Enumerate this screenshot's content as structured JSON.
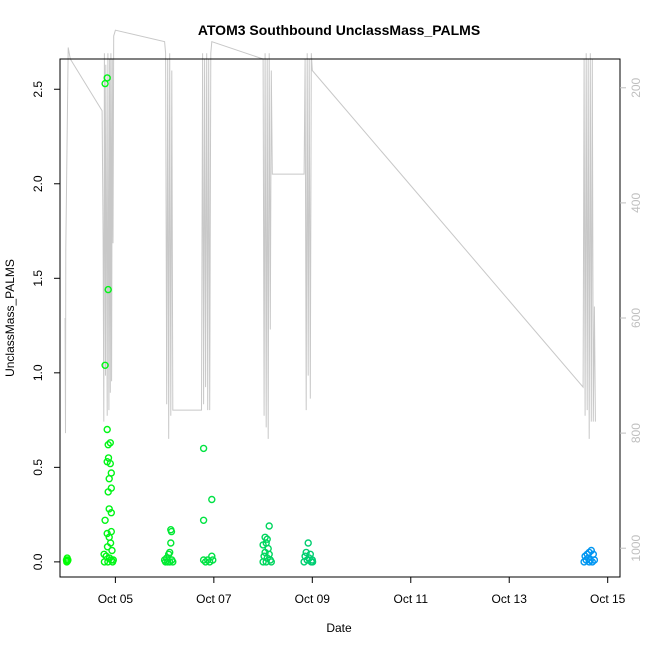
{
  "chart_data": {
    "type": "scatter",
    "title": "ATOM3 Southbound UnclassMass_PALMS",
    "xlabel": "Date",
    "ylabel": "UnclassMass_PALMS",
    "xlim": [
      "2017-10-03T21:00",
      "2017-10-15T06:00"
    ],
    "ylim": [
      -0.08,
      2.66
    ],
    "x_ticks": [
      {
        "value": "2017-10-05",
        "label": "Oct 05"
      },
      {
        "value": "2017-10-07",
        "label": "Oct 07"
      },
      {
        "value": "2017-10-09",
        "label": "Oct 09"
      },
      {
        "value": "2017-10-11",
        "label": "Oct 11"
      },
      {
        "value": "2017-10-13",
        "label": "Oct 13"
      },
      {
        "value": "2017-10-15",
        "label": "Oct 15"
      }
    ],
    "y_ticks": [
      0.0,
      0.5,
      1.0,
      1.5,
      2.0,
      2.5
    ],
    "y_tick_labels": [
      "0.0",
      "0.5",
      "1.0",
      "1.5",
      "2.0",
      "2.5"
    ],
    "right_axis": {
      "label": "",
      "reversed": true,
      "ylim": [
        150,
        1050
      ],
      "ticks": [
        200,
        400,
        600,
        800,
        1000
      ],
      "tick_labels": [
        "200",
        "400",
        "600",
        "800",
        "1000"
      ],
      "color": "#bfbfbf"
    },
    "series": [
      {
        "color_start": "#00ff00",
        "color_end": "#0090ff",
        "marker": "open-circle",
        "points": [
          {
            "x": "2017-10-04T00:10",
            "y": 0.01
          },
          {
            "x": "2017-10-04T00:20",
            "y": 0.0
          },
          {
            "x": "2017-10-04T00:30",
            "y": 0.02
          },
          {
            "x": "2017-10-04T00:40",
            "y": 0.005
          },
          {
            "x": "2017-10-04T00:50",
            "y": 0.01
          },
          {
            "x": "2017-10-04T19:00",
            "y": 2.53
          },
          {
            "x": "2017-10-04T20:00",
            "y": 2.56
          },
          {
            "x": "2017-10-04T20:30",
            "y": 1.44
          },
          {
            "x": "2017-10-04T19:00",
            "y": 1.04
          },
          {
            "x": "2017-10-04T20:00",
            "y": 0.7
          },
          {
            "x": "2017-10-04T21:30",
            "y": 0.63
          },
          {
            "x": "2017-10-04T20:30",
            "y": 0.62
          },
          {
            "x": "2017-10-04T20:40",
            "y": 0.55
          },
          {
            "x": "2017-10-04T20:00",
            "y": 0.53
          },
          {
            "x": "2017-10-04T21:30",
            "y": 0.52
          },
          {
            "x": "2017-10-04T22:00",
            "y": 0.47
          },
          {
            "x": "2017-10-04T21:00",
            "y": 0.44
          },
          {
            "x": "2017-10-04T22:00",
            "y": 0.39
          },
          {
            "x": "2017-10-04T20:30",
            "y": 0.37
          },
          {
            "x": "2017-10-04T21:00",
            "y": 0.28
          },
          {
            "x": "2017-10-04T22:00",
            "y": 0.26
          },
          {
            "x": "2017-10-04T19:00",
            "y": 0.22
          },
          {
            "x": "2017-10-04T22:00",
            "y": 0.16
          },
          {
            "x": "2017-10-04T20:00",
            "y": 0.15
          },
          {
            "x": "2017-10-04T21:00",
            "y": 0.13
          },
          {
            "x": "2017-10-04T21:40",
            "y": 0.1
          },
          {
            "x": "2017-10-04T20:10",
            "y": 0.08
          },
          {
            "x": "2017-10-04T22:20",
            "y": 0.06
          },
          {
            "x": "2017-10-04T18:30",
            "y": 0.04
          },
          {
            "x": "2017-10-04T19:30",
            "y": 0.03
          },
          {
            "x": "2017-10-04T21:10",
            "y": 0.02
          },
          {
            "x": "2017-10-04T22:00",
            "y": 0.01
          },
          {
            "x": "2017-10-04T23:00",
            "y": 0.01
          },
          {
            "x": "2017-10-04T20:20",
            "y": 0.0
          },
          {
            "x": "2017-10-04T18:40",
            "y": 0.0
          },
          {
            "x": "2017-10-04T22:40",
            "y": 0.0
          },
          {
            "x": "2017-10-06T00:00",
            "y": 0.01
          },
          {
            "x": "2017-10-06T01:00",
            "y": 0.02
          },
          {
            "x": "2017-10-06T02:00",
            "y": 0.04
          },
          {
            "x": "2017-10-06T03:00",
            "y": 0.17
          },
          {
            "x": "2017-10-06T03:20",
            "y": 0.16
          },
          {
            "x": "2017-10-06T03:00",
            "y": 0.1
          },
          {
            "x": "2017-10-06T02:30",
            "y": 0.05
          },
          {
            "x": "2017-10-06T00:30",
            "y": 0.0
          },
          {
            "x": "2017-10-06T01:30",
            "y": 0.0
          },
          {
            "x": "2017-10-06T02:30",
            "y": 0.0
          },
          {
            "x": "2017-10-06T03:30",
            "y": 0.01
          },
          {
            "x": "2017-10-06T04:00",
            "y": 0.0
          },
          {
            "x": "2017-10-06T19:00",
            "y": 0.6
          },
          {
            "x": "2017-10-06T23:00",
            "y": 0.33
          },
          {
            "x": "2017-10-06T19:00",
            "y": 0.22
          },
          {
            "x": "2017-10-06T23:00",
            "y": 0.03
          },
          {
            "x": "2017-10-06T19:00",
            "y": 0.01
          },
          {
            "x": "2017-10-06T20:00",
            "y": 0.0
          },
          {
            "x": "2017-10-06T21:00",
            "y": 0.01
          },
          {
            "x": "2017-10-06T22:00",
            "y": 0.0
          },
          {
            "x": "2017-10-06T23:30",
            "y": 0.01
          },
          {
            "x": "2017-10-08T01:00",
            "y": 0.13
          },
          {
            "x": "2017-10-08T03:00",
            "y": 0.19
          },
          {
            "x": "2017-10-08T02:00",
            "y": 0.12
          },
          {
            "x": "2017-10-08T01:30",
            "y": 0.1
          },
          {
            "x": "2017-10-08T00:00",
            "y": 0.09
          },
          {
            "x": "2017-10-08T02:30",
            "y": 0.07
          },
          {
            "x": "2017-10-08T01:00",
            "y": 0.05
          },
          {
            "x": "2017-10-08T03:00",
            "y": 0.04
          },
          {
            "x": "2017-10-08T00:30",
            "y": 0.03
          },
          {
            "x": "2017-10-08T02:00",
            "y": 0.02
          },
          {
            "x": "2017-10-08T03:30",
            "y": 0.01
          },
          {
            "x": "2017-10-08T04:00",
            "y": 0.0
          },
          {
            "x": "2017-10-08T00:00",
            "y": 0.0
          },
          {
            "x": "2017-10-08T01:30",
            "y": 0.0
          },
          {
            "x": "2017-10-08T22:00",
            "y": 0.1
          },
          {
            "x": "2017-10-08T21:00",
            "y": 0.05
          },
          {
            "x": "2017-10-08T23:00",
            "y": 0.04
          },
          {
            "x": "2017-10-08T20:30",
            "y": 0.03
          },
          {
            "x": "2017-10-08T22:30",
            "y": 0.02
          },
          {
            "x": "2017-10-08T21:30",
            "y": 0.01
          },
          {
            "x": "2017-10-09T00:00",
            "y": 0.01
          },
          {
            "x": "2017-10-08T20:00",
            "y": 0.0
          },
          {
            "x": "2017-10-08T23:30",
            "y": 0.0
          },
          {
            "x": "2017-10-09T00:10",
            "y": 0.0
          },
          {
            "x": "2017-10-14T13:00",
            "y": 0.03
          },
          {
            "x": "2017-10-14T14:00",
            "y": 0.04
          },
          {
            "x": "2017-10-14T15:00",
            "y": 0.05
          },
          {
            "x": "2017-10-14T16:00",
            "y": 0.06
          },
          {
            "x": "2017-10-14T17:00",
            "y": 0.04
          },
          {
            "x": "2017-10-14T13:30",
            "y": 0.01
          },
          {
            "x": "2017-10-14T14:30",
            "y": 0.02
          },
          {
            "x": "2017-10-14T15:30",
            "y": 0.01
          },
          {
            "x": "2017-10-14T16:30",
            "y": 0.0
          },
          {
            "x": "2017-10-14T12:30",
            "y": 0.0
          },
          {
            "x": "2017-10-14T17:30",
            "y": 0.01
          },
          {
            "x": "2017-10-14T15:00",
            "y": 0.0
          }
        ]
      },
      {
        "color": "#c8c8c8",
        "marker": "line",
        "axis": "right",
        "points": [
          {
            "x": "2017-10-03T23:30",
            "y": 600
          },
          {
            "x": "2017-10-03T23:40",
            "y": 800
          },
          {
            "x": "2017-10-03T23:50",
            "y": 480
          },
          {
            "x": "2017-10-04T01:00",
            "y": 130
          },
          {
            "x": "2017-10-04T02:00",
            "y": 150
          },
          {
            "x": "2017-10-04T17:30",
            "y": 240
          },
          {
            "x": "2017-10-04T18:00",
            "y": 460
          },
          {
            "x": "2017-10-04T18:20",
            "y": 780
          },
          {
            "x": "2017-10-04T18:40",
            "y": 140
          },
          {
            "x": "2017-10-04T19:10",
            "y": 700
          },
          {
            "x": "2017-10-04T19:20",
            "y": 160
          },
          {
            "x": "2017-10-04T19:40",
            "y": 420
          },
          {
            "x": "2017-10-04T20:00",
            "y": 770
          },
          {
            "x": "2017-10-04T20:20",
            "y": 140
          },
          {
            "x": "2017-10-04T20:50",
            "y": 760
          },
          {
            "x": "2017-10-04T21:10",
            "y": 150
          },
          {
            "x": "2017-10-04T21:30",
            "y": 730
          },
          {
            "x": "2017-10-04T21:50",
            "y": 140
          },
          {
            "x": "2017-10-04T22:10",
            "y": 710
          },
          {
            "x": "2017-10-04T22:30",
            "y": 150
          },
          {
            "x": "2017-10-04T22:50",
            "y": 470
          },
          {
            "x": "2017-10-04T23:10",
            "y": 110
          },
          {
            "x": "2017-10-05T00:00",
            "y": 100
          },
          {
            "x": "2017-10-06T00:00",
            "y": 120
          },
          {
            "x": "2017-10-06T00:30",
            "y": 140
          },
          {
            "x": "2017-10-06T01:00",
            "y": 750
          },
          {
            "x": "2017-10-06T01:30",
            "y": 150
          },
          {
            "x": "2017-10-06T02:00",
            "y": 810
          },
          {
            "x": "2017-10-06T02:30",
            "y": 140
          },
          {
            "x": "2017-10-06T03:00",
            "y": 770
          },
          {
            "x": "2017-10-06T03:30",
            "y": 170
          },
          {
            "x": "2017-10-06T04:00",
            "y": 760
          },
          {
            "x": "2017-10-06T04:30",
            "y": 760
          },
          {
            "x": "2017-10-06T18:00",
            "y": 760
          },
          {
            "x": "2017-10-06T18:30",
            "y": 140
          },
          {
            "x": "2017-10-06T19:00",
            "y": 750
          },
          {
            "x": "2017-10-06T19:30",
            "y": 150
          },
          {
            "x": "2017-10-06T20:00",
            "y": 720
          },
          {
            "x": "2017-10-06T20:30",
            "y": 140
          },
          {
            "x": "2017-10-06T21:00",
            "y": 760
          },
          {
            "x": "2017-10-06T21:30",
            "y": 150
          },
          {
            "x": "2017-10-06T22:00",
            "y": 760
          },
          {
            "x": "2017-10-06T22:30",
            "y": 140
          },
          {
            "x": "2017-10-06T23:00",
            "y": 120
          },
          {
            "x": "2017-10-08T00:00",
            "y": 150
          },
          {
            "x": "2017-10-08T00:30",
            "y": 770
          },
          {
            "x": "2017-10-08T01:00",
            "y": 140
          },
          {
            "x": "2017-10-08T01:30",
            "y": 790
          },
          {
            "x": "2017-10-08T02:00",
            "y": 150
          },
          {
            "x": "2017-10-08T02:30",
            "y": 810
          },
          {
            "x": "2017-10-08T03:00",
            "y": 140
          },
          {
            "x": "2017-10-08T03:30",
            "y": 620
          },
          {
            "x": "2017-10-08T04:00",
            "y": 170
          },
          {
            "x": "2017-10-08T04:30",
            "y": 350
          },
          {
            "x": "2017-10-08T20:00",
            "y": 350
          },
          {
            "x": "2017-10-08T20:30",
            "y": 150
          },
          {
            "x": "2017-10-08T21:00",
            "y": 760
          },
          {
            "x": "2017-10-08T21:30",
            "y": 140
          },
          {
            "x": "2017-10-08T22:00",
            "y": 700
          },
          {
            "x": "2017-10-08T22:30",
            "y": 150
          },
          {
            "x": "2017-10-08T23:00",
            "y": 740
          },
          {
            "x": "2017-10-08T23:30",
            "y": 140
          },
          {
            "x": "2017-10-09T00:00",
            "y": 170
          },
          {
            "x": "2017-10-14T12:00",
            "y": 720
          },
          {
            "x": "2017-10-14T12:30",
            "y": 150
          },
          {
            "x": "2017-10-14T13:00",
            "y": 770
          },
          {
            "x": "2017-10-14T13:30",
            "y": 140
          },
          {
            "x": "2017-10-14T14:00",
            "y": 760
          },
          {
            "x": "2017-10-14T14:30",
            "y": 150
          },
          {
            "x": "2017-10-14T15:00",
            "y": 810
          },
          {
            "x": "2017-10-14T15:30",
            "y": 140
          },
          {
            "x": "2017-10-14T16:00",
            "y": 780
          },
          {
            "x": "2017-10-14T16:30",
            "y": 150
          },
          {
            "x": "2017-10-14T17:00",
            "y": 780
          },
          {
            "x": "2017-10-14T17:30",
            "y": 580
          },
          {
            "x": "2017-10-14T18:00",
            "y": 780
          }
        ]
      }
    ],
    "grid": false
  }
}
